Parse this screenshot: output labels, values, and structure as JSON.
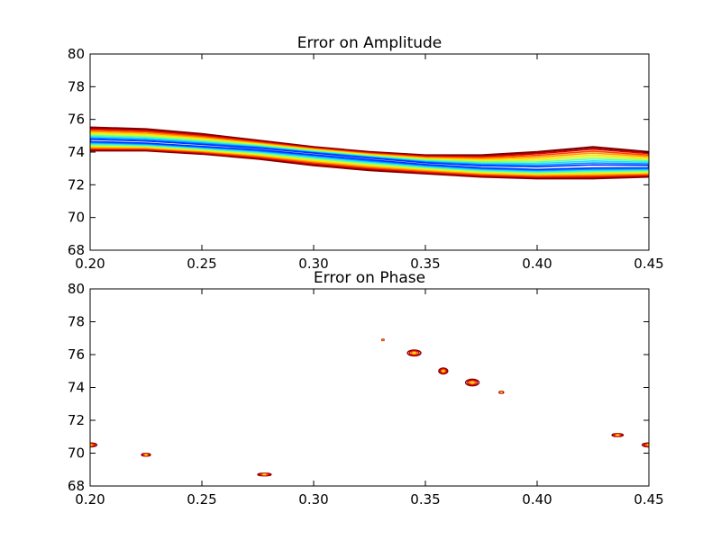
{
  "chart_data": [
    {
      "type": "contour",
      "title": "Error on Amplitude",
      "xlabel": "",
      "ylabel": "",
      "xlim": [
        0.2,
        0.45
      ],
      "ylim": [
        68,
        80
      ],
      "xticks": [
        "0.20",
        "0.25",
        "0.30",
        "0.35",
        "0.40",
        "0.45"
      ],
      "yticks": [
        "68",
        "70",
        "72",
        "74",
        "76",
        "78",
        "80"
      ],
      "band": {
        "x": [
          0.2,
          0.225,
          0.25,
          0.275,
          0.3,
          0.325,
          0.35,
          0.375,
          0.4,
          0.425,
          0.45
        ],
        "upper": [
          75.5,
          75.4,
          75.1,
          74.7,
          74.3,
          74.0,
          73.8,
          73.8,
          74.0,
          74.3,
          74.0
        ],
        "lower": [
          74.1,
          74.1,
          73.9,
          73.6,
          73.2,
          72.9,
          72.7,
          72.5,
          72.4,
          72.4,
          72.5
        ],
        "min_center": [
          74.7,
          74.6,
          74.4,
          74.2,
          73.9,
          73.6,
          73.3,
          73.1,
          73.0,
          73.1,
          73.1
        ]
      },
      "colors": [
        "#800000",
        "#d40000",
        "#ff4000",
        "#ff9a00",
        "#ffe000",
        "#c8ff30",
        "#60ffa0",
        "#20e0ff",
        "#0090ff",
        "#0030ff"
      ]
    },
    {
      "type": "contour",
      "title": "Error on Phase",
      "xlabel": "",
      "ylabel": "",
      "xlim": [
        0.2,
        0.45
      ],
      "ylim": [
        68,
        80
      ],
      "xticks": [
        "0.20",
        "0.25",
        "0.30",
        "0.35",
        "0.40",
        "0.45"
      ],
      "yticks": [
        "68",
        "70",
        "72",
        "74",
        "76",
        "78",
        "80"
      ],
      "blobs": [
        {
          "x": 0.2,
          "y": 70.5,
          "rx": 0.003,
          "ry": 0.12
        },
        {
          "x": 0.225,
          "y": 69.9,
          "rx": 0.002,
          "ry": 0.08
        },
        {
          "x": 0.278,
          "y": 68.7,
          "rx": 0.003,
          "ry": 0.08
        },
        {
          "x": 0.331,
          "y": 76.9,
          "rx": 0.0005,
          "ry": 0.03
        },
        {
          "x": 0.345,
          "y": 76.1,
          "rx": 0.003,
          "ry": 0.18
        },
        {
          "x": 0.358,
          "y": 75.0,
          "rx": 0.002,
          "ry": 0.18
        },
        {
          "x": 0.371,
          "y": 74.3,
          "rx": 0.003,
          "ry": 0.2
        },
        {
          "x": 0.384,
          "y": 73.7,
          "rx": 0.001,
          "ry": 0.06
        },
        {
          "x": 0.436,
          "y": 71.1,
          "rx": 0.0025,
          "ry": 0.09
        },
        {
          "x": 0.45,
          "y": 70.5,
          "rx": 0.003,
          "ry": 0.12
        }
      ],
      "colors": [
        "#800000",
        "#d40000",
        "#ff6000",
        "#ffe000"
      ]
    }
  ]
}
